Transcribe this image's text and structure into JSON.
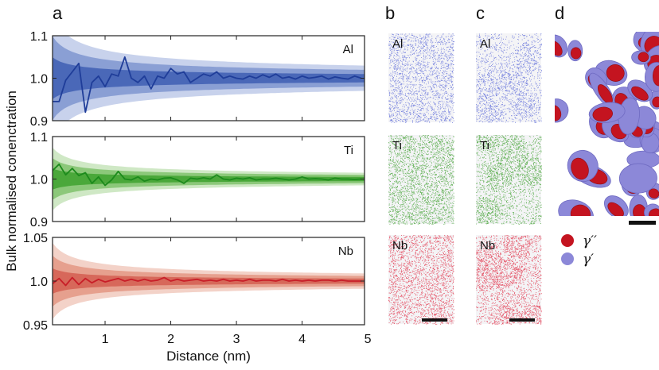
{
  "panel_letters": {
    "a": "a",
    "b": "b",
    "c": "c",
    "d": "d"
  },
  "ylabel": "Bulk normalised conenctration",
  "xlabel": "Distance (nm)",
  "chart_data": [
    {
      "type": "area",
      "element": "Al",
      "ylim": [
        0.9,
        1.1
      ],
      "yticks": [
        "0.9",
        "1.0",
        "1.1"
      ],
      "xlim": [
        0.2,
        4.95
      ],
      "colors": {
        "line": "#1f3d99",
        "band_inner": "#4a68b8",
        "band_mid": "#8a9fd4",
        "band_outer": "#c8d2ec"
      },
      "band_scale": 0.022,
      "x": [
        0.2,
        0.3,
        0.4,
        0.5,
        0.6,
        0.7,
        0.8,
        0.9,
        1.0,
        1.1,
        1.2,
        1.3,
        1.4,
        1.5,
        1.6,
        1.7,
        1.8,
        1.9,
        2.0,
        2.1,
        2.2,
        2.3,
        2.4,
        2.5,
        2.6,
        2.7,
        2.8,
        2.9,
        3.0,
        3.1,
        3.2,
        3.3,
        3.4,
        3.5,
        3.6,
        3.7,
        3.8,
        3.9,
        4.0,
        4.1,
        4.2,
        4.3,
        4.4,
        4.5,
        4.6,
        4.7,
        4.8,
        4.9
      ],
      "y": [
        0.945,
        0.945,
        0.995,
        1.015,
        1.035,
        0.92,
        0.99,
        1.005,
        0.98,
        1.01,
        1.005,
        1.05,
        1.0,
        0.99,
        1.005,
        0.975,
        1.005,
        1.0,
        1.023,
        1.01,
        1.015,
        0.99,
        1.0,
        1.01,
        1.005,
        1.015,
        1.0,
        1.005,
        1.0,
        0.998,
        1.005,
        1.0,
        1.008,
        1.002,
        1.01,
        1.0,
        1.003,
        0.998,
        1.005,
        1.0,
        1.002,
        1.005,
        0.998,
        1.003,
        1.0,
        0.998,
        1.005,
        1.0
      ]
    },
    {
      "type": "area",
      "element": "Ti",
      "ylim": [
        0.9,
        1.1
      ],
      "yticks": [
        "0.9",
        "1.0",
        "1.1"
      ],
      "xlim": [
        0.2,
        4.95
      ],
      "colors": {
        "line": "#1c8a1c",
        "band_inner": "#4aa83a",
        "band_mid": "#8cc87a",
        "band_outer": "#cfe8c5"
      },
      "band_scale": 0.011,
      "x": [
        0.2,
        0.3,
        0.4,
        0.5,
        0.6,
        0.7,
        0.8,
        0.9,
        1.0,
        1.1,
        1.2,
        1.3,
        1.4,
        1.5,
        1.6,
        1.7,
        1.8,
        1.9,
        2.0,
        2.1,
        2.2,
        2.3,
        2.4,
        2.5,
        2.6,
        2.7,
        2.8,
        2.9,
        3.0,
        3.1,
        3.2,
        3.3,
        3.4,
        3.5,
        3.6,
        3.7,
        3.8,
        3.9,
        4.0,
        4.1,
        4.2,
        4.3,
        4.4,
        4.5,
        4.6,
        4.7,
        4.8,
        4.9
      ],
      "y": [
        1.02,
        1.035,
        1.01,
        1.025,
        1.008,
        1.015,
        0.99,
        1.005,
        0.985,
        0.998,
        1.018,
        1.0,
        0.998,
        1.005,
        0.995,
        1.0,
        0.998,
        1.002,
        1.003,
        0.998,
        0.99,
        1.002,
        1.0,
        1.003,
        1.0,
        1.01,
        1.0,
        0.998,
        1.002,
        1.0,
        1.003,
        0.998,
        1.0,
        1.0,
        1.002,
        1.0,
        0.998,
        1.0,
        1.005,
        1.0,
        1.001,
        1.0,
        0.998,
        1.002,
        1.0,
        1.0,
        0.999,
        1.0
      ]
    },
    {
      "type": "area",
      "element": "Nb",
      "ylim": [
        0.95,
        1.05
      ],
      "yticks": [
        "0.95",
        "1.0",
        "1.05"
      ],
      "xlim": [
        0.2,
        4.95
      ],
      "colors": {
        "line": "#c81e28",
        "band_inner": "#d7685a",
        "band_mid": "#e6a08e",
        "band_outer": "#f3d2c8"
      },
      "band_scale": 0.0065,
      "x": [
        0.2,
        0.3,
        0.4,
        0.5,
        0.6,
        0.7,
        0.8,
        0.9,
        1.0,
        1.1,
        1.2,
        1.3,
        1.4,
        1.5,
        1.6,
        1.7,
        1.8,
        1.9,
        2.0,
        2.1,
        2.2,
        2.3,
        2.4,
        2.5,
        2.6,
        2.7,
        2.8,
        2.9,
        3.0,
        3.1,
        3.2,
        3.3,
        3.4,
        3.5,
        3.6,
        3.7,
        3.8,
        3.9,
        4.0,
        4.1,
        4.2,
        4.3,
        4.4,
        4.5,
        4.6,
        4.7,
        4.8,
        4.9
      ],
      "y": [
        0.997,
        1.003,
        0.995,
        1.004,
        0.996,
        1.003,
        0.998,
        1.002,
        0.999,
        1.001,
        1.003,
        1.0,
        1.002,
        1.0,
        1.002,
        1.0,
        1.001,
        1.004,
        1.0,
        1.002,
        1.0,
        1.001,
        1.002,
        1.0,
        1.001,
        1.0,
        1.002,
        1.0,
        1.001,
        1.0,
        1.002,
        1.0,
        1.001,
        1.001,
        1.0,
        1.002,
        1.0,
        1.001,
        1.0,
        1.001,
        1.0,
        1.001,
        1.001,
        1.0,
        1.001,
        1.0,
        1.0,
        1.0
      ]
    }
  ],
  "xticks": [
    "1",
    "2",
    "3",
    "4",
    "5"
  ],
  "maps": {
    "b": [
      {
        "label": "Al",
        "color": "#4a5ad6",
        "density": 0.22,
        "clustered": false
      },
      {
        "label": "Ti",
        "color": "#2f9a1e",
        "density": 0.28,
        "clustered": false
      },
      {
        "label": "Nb",
        "color": "#e0203a",
        "density": 0.26,
        "clustered": false
      }
    ],
    "c": [
      {
        "label": "Al",
        "color": "#4a5ad6",
        "density": 0.28,
        "clustered": true
      },
      {
        "label": "Ti",
        "color": "#2f9a1e",
        "density": 0.38,
        "clustered": true
      },
      {
        "label": "Nb",
        "color": "#e0203a",
        "density": 0.42,
        "clustered": true
      }
    ]
  },
  "legend_d": [
    {
      "label": "γ′′",
      "color": "#c41420"
    },
    {
      "label": "γ′",
      "color": "#8c88d8"
    }
  ]
}
